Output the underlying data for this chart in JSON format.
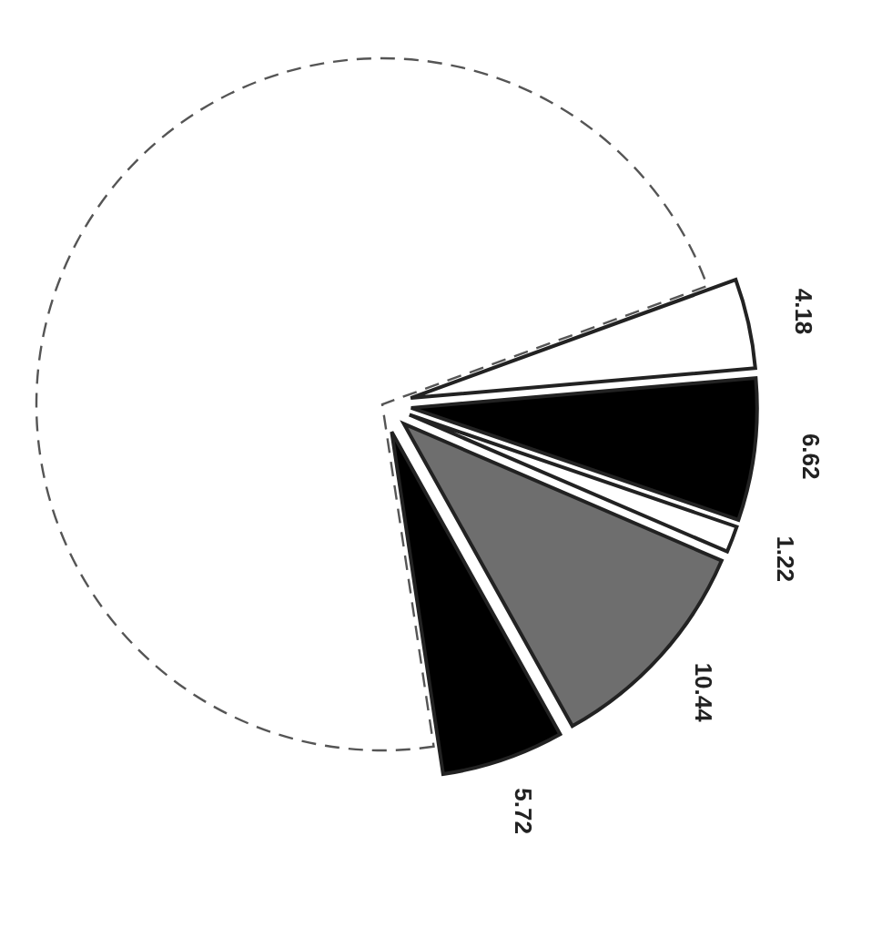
{
  "chart_data": {
    "type": "pie",
    "categories": [
      null,
      null,
      null,
      null,
      null,
      null
    ],
    "values": [
      4.18,
      6.62,
      1.22,
      10.44,
      5.72,
      71.82
    ],
    "colors": [
      "#ffffff",
      "#000000",
      "#ffffff",
      "#6e6e6e",
      "#000000",
      "#ffffff"
    ],
    "value_labels": [
      "4.18",
      "6.62",
      "1.22",
      "10.44",
      "5.72",
      null
    ]
  }
}
